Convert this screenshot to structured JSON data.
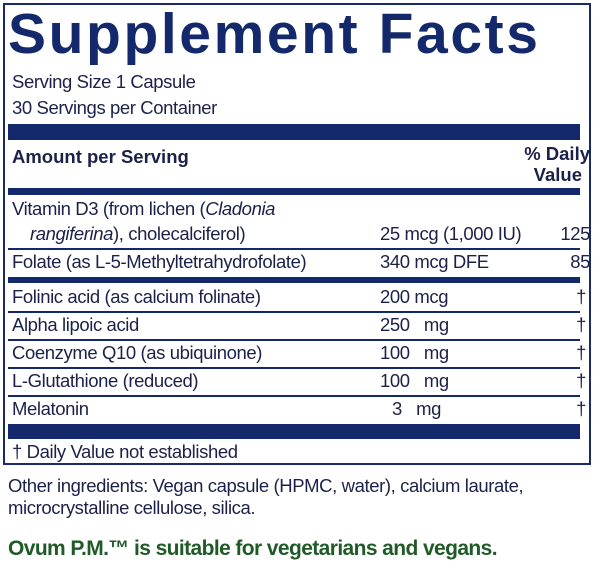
{
  "title": "Supplement Facts",
  "serving_size": "Serving Size 1 Capsule",
  "servings_per_container": "30 Servings per Container",
  "header": {
    "amount": "Amount per Serving",
    "dv_line1": "% Daily",
    "dv_line2": "Value"
  },
  "vitamin_d3": {
    "name_line1_a": "Vitamin D3 (from lichen (",
    "name_line1_italic": "Cladonia",
    "name_line2_italic": "rangiferina",
    "name_line2_b": "), cholecalciferol)",
    "amount": "25 mcg (1,000 IU)",
    "dv": "125"
  },
  "folate": {
    "name": "Folate (as L-5-Methyltetrahydrofolate)",
    "amount": "340 mcg DFE",
    "dv": "85"
  },
  "rows": [
    {
      "name": "Folinic acid (as calcium folinate)",
      "amount": "200 mcg",
      "dv": "†"
    },
    {
      "name": "Alpha lipoic acid",
      "amount": "250   mg",
      "dv": "†"
    },
    {
      "name": "Coenzyme Q10 (as ubiquinone)",
      "amount": "100   mg",
      "dv": "†"
    },
    {
      "name": "L-Glutathione (reduced)",
      "amount": "100   mg",
      "dv": "†"
    },
    {
      "name": "Melatonin",
      "amount": "3   mg",
      "dv": "†"
    }
  ],
  "footnote": "† Daily Value not established",
  "other_ingredients_line1": "Other ingredients: Vegan capsule (HPMC, water), calcium laurate,",
  "other_ingredients_line2": "microcrystalline cellulose, silica.",
  "suitability": "Ovum P.M.™ is suitable for vegetarians and vegans.",
  "colors": {
    "navy": "#13296b",
    "green": "#1f5a27",
    "text": "#1b2148"
  }
}
